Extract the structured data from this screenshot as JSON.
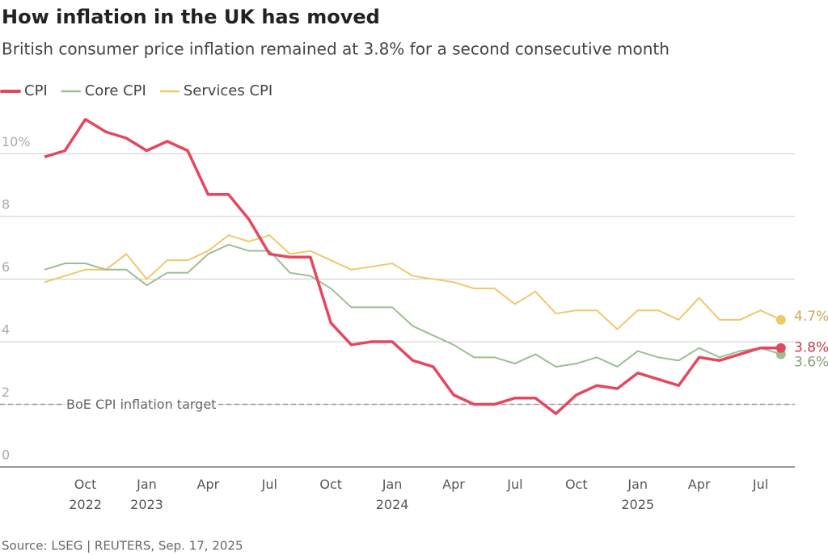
{
  "chart_data": {
    "type": "line",
    "title": "How inflation in the UK has moved",
    "subtitle": "British consumer price inflation remained at 3.8% for a second consecutive month",
    "source": "Source: LSEG | REUTERS, Sep. 17, 2025",
    "categories": [
      null,
      null,
      "Oct 2022",
      null,
      null,
      "Jan 2023",
      null,
      null,
      "Apr",
      null,
      null,
      "Jul",
      null,
      null,
      "Oct",
      null,
      null,
      "Jan 2024",
      null,
      null,
      "Apr",
      null,
      null,
      "Jul",
      null,
      null,
      "Oct",
      null,
      null,
      "Jan 2025",
      null,
      null,
      "Apr",
      null,
      null,
      "Jul",
      null
    ],
    "series": [
      {
        "name": "CPI",
        "color": "#e5475f",
        "width": 3.5,
        "values": [
          9.9,
          10.1,
          11.1,
          10.7,
          10.5,
          10.1,
          10.4,
          10.1,
          8.7,
          8.7,
          7.9,
          6.8,
          6.7,
          6.7,
          4.6,
          3.9,
          4.0,
          4.0,
          3.4,
          3.2,
          2.3,
          2.0,
          2.0,
          2.2,
          2.2,
          1.7,
          2.3,
          2.6,
          2.5,
          3.0,
          2.8,
          2.6,
          3.5,
          3.4,
          3.6,
          3.8,
          3.8
        ],
        "value_labels": [
          null,
          null,
          null,
          null,
          null,
          null,
          null,
          null,
          null,
          null,
          null,
          null,
          null,
          null,
          null,
          null,
          null,
          null,
          null,
          null,
          null,
          null,
          null,
          null,
          null,
          null,
          null,
          null,
          null,
          null,
          null,
          null,
          null,
          null,
          null,
          null,
          "3.8%"
        ]
      },
      {
        "name": "Core CPI",
        "color": "#9dbe94",
        "width": 2,
        "values": [
          6.3,
          6.5,
          6.5,
          6.3,
          6.3,
          5.8,
          6.2,
          6.2,
          6.8,
          7.1,
          6.9,
          6.9,
          6.2,
          6.1,
          5.7,
          5.1,
          5.1,
          5.1,
          4.5,
          4.2,
          3.9,
          3.5,
          3.5,
          3.3,
          3.6,
          3.2,
          3.3,
          3.5,
          3.2,
          3.7,
          3.5,
          3.4,
          3.8,
          3.5,
          3.7,
          3.8,
          3.6
        ],
        "value_labels": [
          null,
          null,
          null,
          null,
          null,
          null,
          null,
          null,
          null,
          null,
          null,
          null,
          null,
          null,
          null,
          null,
          null,
          null,
          null,
          null,
          null,
          null,
          null,
          null,
          null,
          null,
          null,
          null,
          null,
          null,
          null,
          null,
          null,
          null,
          null,
          null,
          "3.6%"
        ]
      },
      {
        "name": "Services CPI",
        "color": "#f0c86a",
        "width": 2,
        "values": [
          5.9,
          6.1,
          6.3,
          6.3,
          6.8,
          6.0,
          6.6,
          6.6,
          6.9,
          7.4,
          7.2,
          7.4,
          6.8,
          6.9,
          6.6,
          6.3,
          6.4,
          6.5,
          6.1,
          6.0,
          5.9,
          5.7,
          5.7,
          5.2,
          5.6,
          4.9,
          5.0,
          5.0,
          4.4,
          5.0,
          5.0,
          4.7,
          5.4,
          4.7,
          4.7,
          5.0,
          4.7
        ],
        "value_labels": [
          null,
          null,
          null,
          null,
          null,
          null,
          null,
          null,
          null,
          null,
          null,
          null,
          null,
          null,
          null,
          null,
          null,
          null,
          null,
          null,
          null,
          null,
          null,
          null,
          null,
          null,
          null,
          null,
          null,
          null,
          null,
          null,
          null,
          null,
          null,
          null,
          "4.7%"
        ]
      }
    ],
    "ylim": [
      0,
      11.3
    ],
    "yticks": [
      0,
      2,
      4,
      6,
      8,
      {
        "value": 10,
        "label": "10%"
      }
    ],
    "grid": true,
    "target": {
      "value": 2,
      "label": "BoE CPI inflation target"
    }
  }
}
